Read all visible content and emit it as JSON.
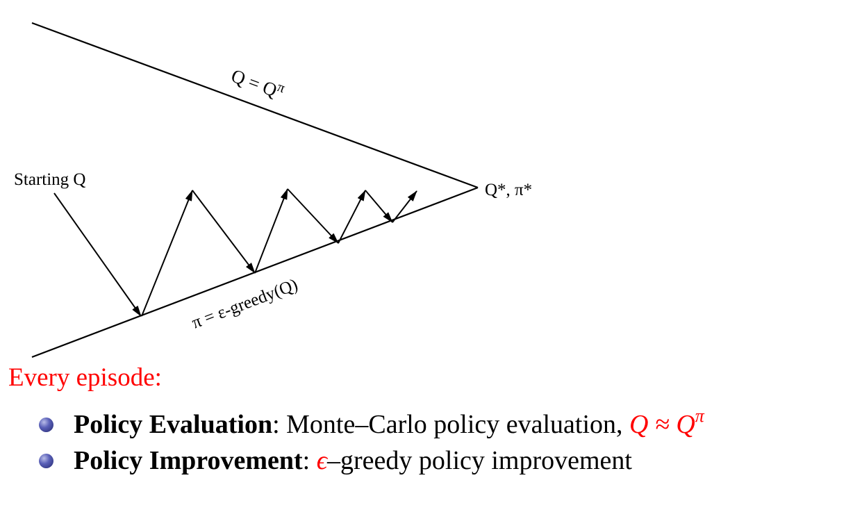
{
  "diagram": {
    "label_value_line": [
      "Q = Q",
      "π"
    ],
    "label_start": "Starting Q",
    "label_optimum": "Q*, π*",
    "label_policy_line": "π = ε-greedy(Q)"
  },
  "heading": "Every episode:",
  "bullets": [
    {
      "term": "Policy Evaluation",
      "sep": ": ",
      "text": "Monte–Carlo policy evaluation, ",
      "math": "Q ≈ Q",
      "math_sup": "π"
    },
    {
      "term": "Policy Improvement",
      "sep": ": ",
      "math": "ϵ",
      "text": "–greedy policy improvement"
    }
  ],
  "colors": {
    "accent": "#ff0000",
    "line": "#000000",
    "bullet": "#3d42a0"
  },
  "icons": [
    "bullet-ball-icon"
  ]
}
